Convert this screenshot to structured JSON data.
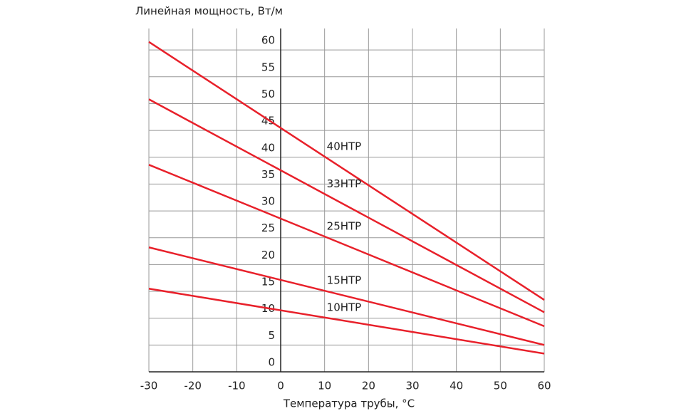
{
  "chart_data": {
    "type": "line",
    "x_label": "Температура трубы, °С",
    "y_label": "Линейная мощность, Вт/м",
    "x": [
      -30,
      60
    ],
    "series": [
      {
        "name": "40HTP",
        "color": "#e8202a",
        "values": [
          61.5,
          13.4
        ]
      },
      {
        "name": "33HTP",
        "color": "#e8202a",
        "values": [
          50.8,
          11.1
        ]
      },
      {
        "name": "25HTP",
        "color": "#e8202a",
        "values": [
          38.6,
          8.5
        ]
      },
      {
        "name": "15HTP",
        "color": "#e8202a",
        "values": [
          23.2,
          5.0
        ]
      },
      {
        "name": "10HTP",
        "color": "#e8202a",
        "values": [
          15.5,
          3.4
        ]
      }
    ],
    "xlim": [
      -30,
      60
    ],
    "xticks": [
      -30,
      -20,
      -10,
      0,
      10,
      20,
      30,
      40,
      50,
      60
    ],
    "ylim": [
      0,
      64
    ],
    "yticks": [
      0,
      5,
      10,
      15,
      20,
      25,
      30,
      35,
      40,
      45,
      50,
      55,
      60
    ],
    "grid": true
  }
}
